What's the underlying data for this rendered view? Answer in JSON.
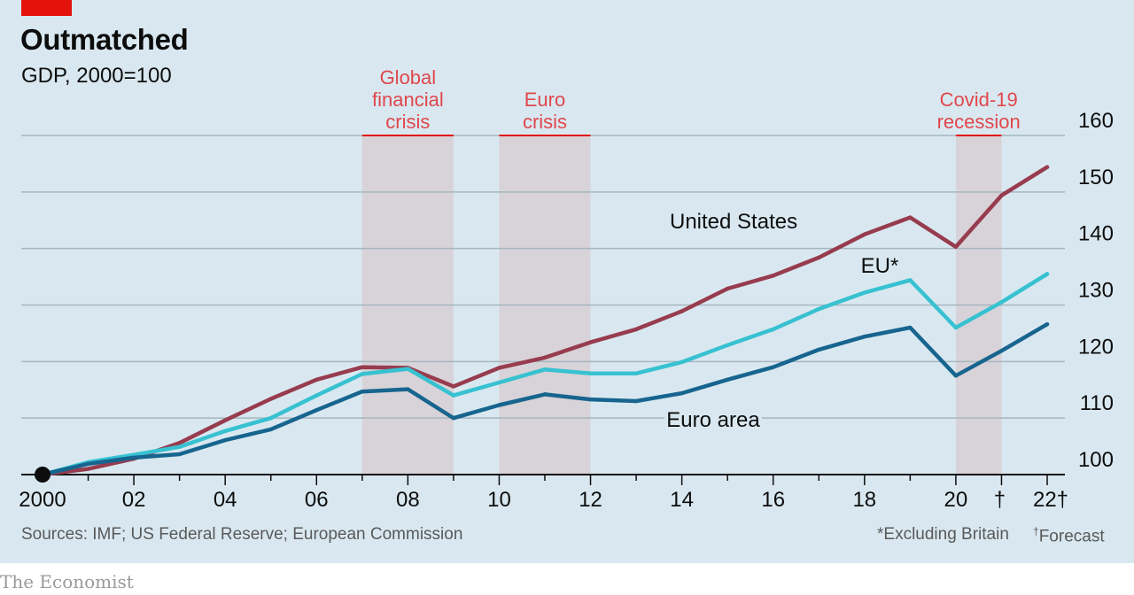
{
  "header": {
    "title": "Outmatched",
    "subtitle": "GDP, 2000=100"
  },
  "footer": {
    "sources": "Sources: IMF; US Federal Reserve; European Commission",
    "footnote": "*Excluding Britain",
    "forecast_mark": "†",
    "forecast_note": "Forecast",
    "brand": "The Economist"
  },
  "colors": {
    "background": "#d9e8f0",
    "accent_red": "#e3120b",
    "united_states": "#973c4e",
    "eu": "#37c1d1",
    "euro_area": "#17658f",
    "shading": "#d8d3d8",
    "crisis_label": "#e0474c"
  },
  "chart_data": {
    "type": "line",
    "title": "Outmatched",
    "subtitle": "GDP, 2000=100",
    "x": [
      2000,
      2001,
      2002,
      2003,
      2004,
      2005,
      2006,
      2007,
      2008,
      2009,
      2010,
      2011,
      2012,
      2013,
      2014,
      2015,
      2016,
      2017,
      2018,
      2019,
      2020,
      2021,
      2022
    ],
    "xlim": [
      2000,
      2022
    ],
    "x_tick_values": [
      2000,
      2002,
      2004,
      2006,
      2008,
      2010,
      2012,
      2014,
      2016,
      2018,
      2020,
      2021,
      2022
    ],
    "x_tick_labels": [
      "2000",
      "02",
      "04",
      "06",
      "08",
      "10",
      "12",
      "14",
      "16",
      "18",
      "20",
      "†",
      "22†"
    ],
    "ylim": [
      100,
      160
    ],
    "y_ticks": [
      100,
      110,
      120,
      130,
      140,
      150,
      160
    ],
    "y_tick_labels": [
      "100",
      "110",
      "120",
      "130",
      "140",
      "150",
      "160"
    ],
    "y_axis_side": "right",
    "grid": true,
    "forecast_years": [
      2021,
      2022
    ],
    "series": [
      {
        "name": "United States",
        "color": "#973c4e",
        "values": [
          100,
          101,
          102.8,
          105.6,
          109.6,
          113.4,
          116.8,
          119,
          118.9,
          115.6,
          118.9,
          120.7,
          123.4,
          125.7,
          128.9,
          132.9,
          135.2,
          138.4,
          142.5,
          145.5,
          140.3,
          149.4,
          154.4
        ]
      },
      {
        "name": "EU*",
        "color": "#37c1d1",
        "values": [
          100,
          102.2,
          103.5,
          104.9,
          107.7,
          110,
          114,
          117.8,
          118.7,
          114,
          116.3,
          118.6,
          117.9,
          117.9,
          119.9,
          122.9,
          125.7,
          129.3,
          132.2,
          134.4,
          126,
          130.5,
          135.5
        ]
      },
      {
        "name": "Euro area",
        "color": "#17658f",
        "values": [
          100,
          101.9,
          103,
          103.6,
          106.1,
          108,
          111.4,
          114.7,
          115.1,
          110,
          112.3,
          114.2,
          113.3,
          113,
          114.4,
          116.8,
          119,
          122.1,
          124.4,
          126,
          117.5,
          121.9,
          126.6
        ]
      }
    ],
    "shaded_periods": [
      {
        "label": "Global financial crisis",
        "label_lines": [
          "Global",
          "financial",
          "crisis"
        ],
        "start": 2007,
        "end": 2009
      },
      {
        "label": "Euro crisis",
        "label_lines": [
          "Euro",
          "crisis"
        ],
        "start": 2010,
        "end": 2012
      },
      {
        "label": "Covid-19 recession",
        "label_lines": [
          "Covid-19",
          "recession"
        ],
        "start": 2020,
        "end": 2021
      }
    ]
  }
}
